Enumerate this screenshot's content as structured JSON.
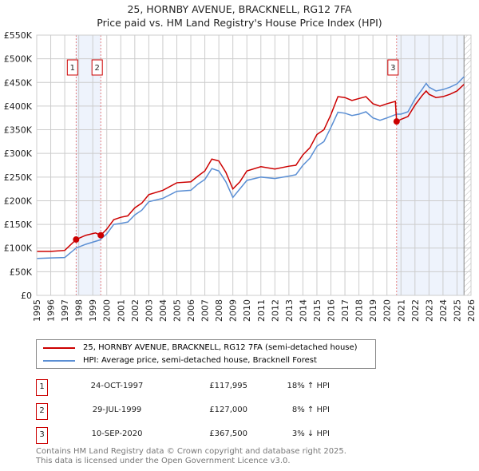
{
  "chart_data": {
    "type": "line",
    "title": "25, HORNBY AVENUE, BRACKNELL, RG12 7FA",
    "subtitle": "Price paid vs. HM Land Registry's House Price Index (HPI)",
    "xlim": [
      1995,
      2026
    ],
    "ylim": [
      0,
      550000
    ],
    "x_ticks": [
      "1995",
      "1996",
      "1997",
      "1998",
      "1999",
      "2000",
      "2001",
      "2002",
      "2003",
      "2004",
      "2005",
      "2006",
      "2007",
      "2008",
      "2009",
      "2010",
      "2011",
      "2012",
      "2013",
      "2014",
      "2015",
      "2016",
      "2017",
      "2018",
      "2019",
      "2020",
      "2021",
      "2022",
      "2023",
      "2024",
      "2025",
      "2026"
    ],
    "y_ticks": [
      {
        "v": 0,
        "label": "£0"
      },
      {
        "v": 50000,
        "label": "£50K"
      },
      {
        "v": 100000,
        "label": "£100K"
      },
      {
        "v": 150000,
        "label": "£150K"
      },
      {
        "v": 200000,
        "label": "£200K"
      },
      {
        "v": 250000,
        "label": "£250K"
      },
      {
        "v": 300000,
        "label": "£300K"
      },
      {
        "v": 350000,
        "label": "£350K"
      },
      {
        "v": 400000,
        "label": "£400K"
      },
      {
        "v": 450000,
        "label": "£450K"
      },
      {
        "v": 500000,
        "label": "£500K"
      },
      {
        "v": 550000,
        "label": "£550K"
      }
    ],
    "grid": true,
    "shaded_ranges": [
      [
        1997.81,
        1999.57
      ],
      [
        2020.69,
        2025.5
      ]
    ],
    "hatched_from": 2025.5,
    "series": [
      {
        "name": "25, HORNBY AVENUE, BRACKNELL, RG12 7FA (semi-detached house)",
        "color": "#cc0000",
        "x": [
          1995,
          1996,
          1997,
          1997.81,
          1998.5,
          1999.2,
          1999.57,
          2000,
          2000.5,
          2001,
          2001.5,
          2002,
          2002.5,
          2003,
          2004,
          2005,
          2006,
          2006.5,
          2007,
          2007.5,
          2008,
          2008.5,
          2009,
          2009.5,
          2010,
          2011,
          2012,
          2013,
          2013.5,
          2014,
          2014.5,
          2015,
          2015.5,
          2016,
          2016.5,
          2017,
          2017.5,
          2018,
          2018.5,
          2019,
          2019.5,
          2020,
          2020.6,
          2020.69,
          2021,
          2021.5,
          2022,
          2022.5,
          2022.8,
          2023,
          2023.5,
          2024,
          2024.5,
          2025,
          2025.5
        ],
        "y": [
          93,
          93,
          95,
          118,
          127,
          132,
          127,
          140,
          160,
          165,
          168,
          185,
          195,
          213,
          222,
          238,
          240,
          252,
          263,
          288,
          284,
          260,
          225,
          240,
          263,
          272,
          267,
          273,
          275,
          297,
          312,
          340,
          350,
          382,
          420,
          418,
          412,
          416,
          420,
          405,
          400,
          405,
          410,
          367.5,
          372,
          378,
          402,
          422,
          432,
          425,
          418,
          420,
          425,
          432,
          446
        ]
      },
      {
        "name": "HPI: Average price, semi-detached house, Bracknell Forest",
        "color": "#5b8fd4",
        "x": [
          1995,
          1996,
          1997,
          1997.81,
          1998.5,
          1999.5,
          2000,
          2000.5,
          2001,
          2001.5,
          2002,
          2002.5,
          2003,
          2004,
          2005,
          2006,
          2006.5,
          2007,
          2007.5,
          2008,
          2008.5,
          2009,
          2009.5,
          2010,
          2011,
          2012,
          2013,
          2013.5,
          2014,
          2014.5,
          2015,
          2015.5,
          2016,
          2016.5,
          2017,
          2017.5,
          2018,
          2018.5,
          2019,
          2019.5,
          2020,
          2020.7,
          2021,
          2021.5,
          2022,
          2022.5,
          2022.8,
          2023,
          2023.5,
          2024,
          2024.5,
          2025,
          2025.5
        ],
        "y": [
          78,
          79,
          80,
          100,
          108,
          117,
          130,
          150,
          152,
          155,
          170,
          180,
          198,
          205,
          220,
          222,
          235,
          245,
          268,
          263,
          240,
          207,
          225,
          243,
          250,
          247,
          252,
          255,
          275,
          290,
          315,
          325,
          355,
          387,
          385,
          380,
          383,
          388,
          375,
          370,
          375,
          383,
          383,
          388,
          415,
          435,
          448,
          440,
          432,
          435,
          440,
          447,
          462
        ]
      }
    ],
    "y_unit": "thousands GBP",
    "sales": [
      {
        "id": "1",
        "x": 1997.81,
        "price": 117995,
        "date": "24-OCT-1997",
        "price_label": "£117,995",
        "hpi": "18% ↑ HPI"
      },
      {
        "id": "2",
        "x": 1999.57,
        "price": 127000,
        "date": "29-JUL-1999",
        "price_label": "£127,000",
        "hpi": "8% ↑ HPI"
      },
      {
        "id": "3",
        "x": 2020.69,
        "price": 367500,
        "date": "10-SEP-2020",
        "price_label": "£367,500",
        "hpi": "3% ↓ HPI"
      }
    ]
  },
  "footer": {
    "line1": "Contains HM Land Registry data © Crown copyright and database right 2025.",
    "line2": "This data is licensed under the Open Government Licence v3.0."
  }
}
